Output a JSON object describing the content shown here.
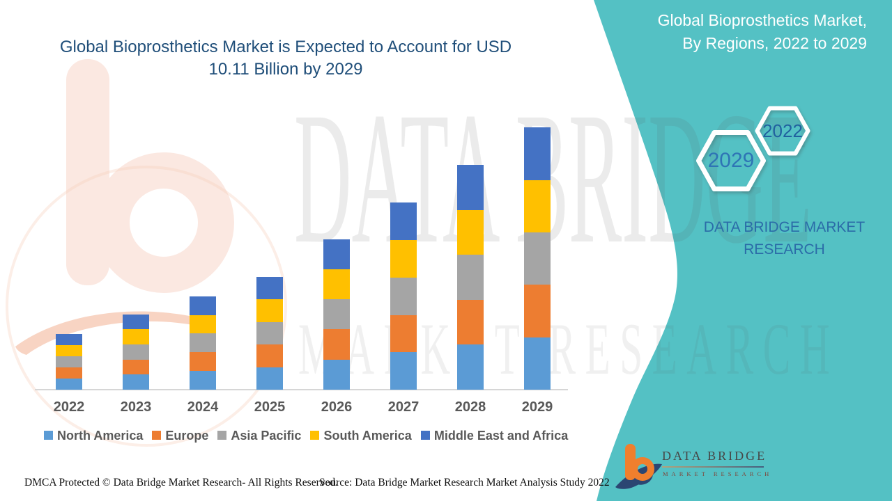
{
  "header": {
    "title_line1": "Global Bioprosthetics Market is Expected to Account for USD",
    "title_line2": "10.11 Billion by 2029"
  },
  "side_panel": {
    "accent_color": "#54C1C4",
    "heading_line1": "Global Bioprosthetics Market,",
    "heading_line2": "By Regions, 2022 to 2029",
    "hexagon_back_label": "2029",
    "hexagon_front_label": "2022",
    "caption_line1": "DATA BRIDGE MARKET",
    "caption_line2": "RESEARCH"
  },
  "watermark": {
    "line1": "DATA BRIDGE",
    "line2": "MARKET RESEARCH"
  },
  "brand_logo": {
    "name": "DATA BRIDGE",
    "tagline": "MARKET RESEARCH"
  },
  "chart_data": {
    "type": "bar",
    "stacked": true,
    "title": "Global Bioprosthetics Market, By Regions, 2022 to 2029",
    "unit": "USD Billion",
    "xlabel": "",
    "ylabel": "",
    "ylim": [
      0,
      10.5
    ],
    "grid": false,
    "legend_position": "bottom",
    "categories": [
      "2022",
      "2023",
      "2024",
      "2025",
      "2026",
      "2027",
      "2028",
      "2029"
    ],
    "series": [
      {
        "name": "North America",
        "color": "#5B9BD5",
        "values": [
          0.43,
          0.58,
          0.72,
          0.87,
          1.16,
          1.44,
          1.73,
          2.02
        ]
      },
      {
        "name": "Europe",
        "color": "#ED7D31",
        "values": [
          0.43,
          0.58,
          0.72,
          0.87,
          1.16,
          1.44,
          1.73,
          2.02
        ]
      },
      {
        "name": "Asia Pacific",
        "color": "#A5A5A5",
        "values": [
          0.43,
          0.58,
          0.72,
          0.87,
          1.16,
          1.44,
          1.73,
          2.02
        ]
      },
      {
        "name": "South America",
        "color": "#FFC000",
        "values": [
          0.43,
          0.58,
          0.72,
          0.87,
          1.16,
          1.44,
          1.73,
          2.02
        ]
      },
      {
        "name": "Middle East and Africa",
        "color": "#4472C4",
        "values": [
          0.43,
          0.58,
          0.72,
          0.87,
          1.16,
          1.44,
          1.73,
          2.03
        ]
      }
    ],
    "totals": [
      2.15,
      2.9,
      3.6,
      4.35,
      5.8,
      7.2,
      8.65,
      10.11
    ]
  },
  "footer": {
    "dmca": "DMCA Protected © Data Bridge Market Research- All Rights Reserved.",
    "source": "Source: Data Bridge Market Research Market Analysis Study 2022"
  }
}
